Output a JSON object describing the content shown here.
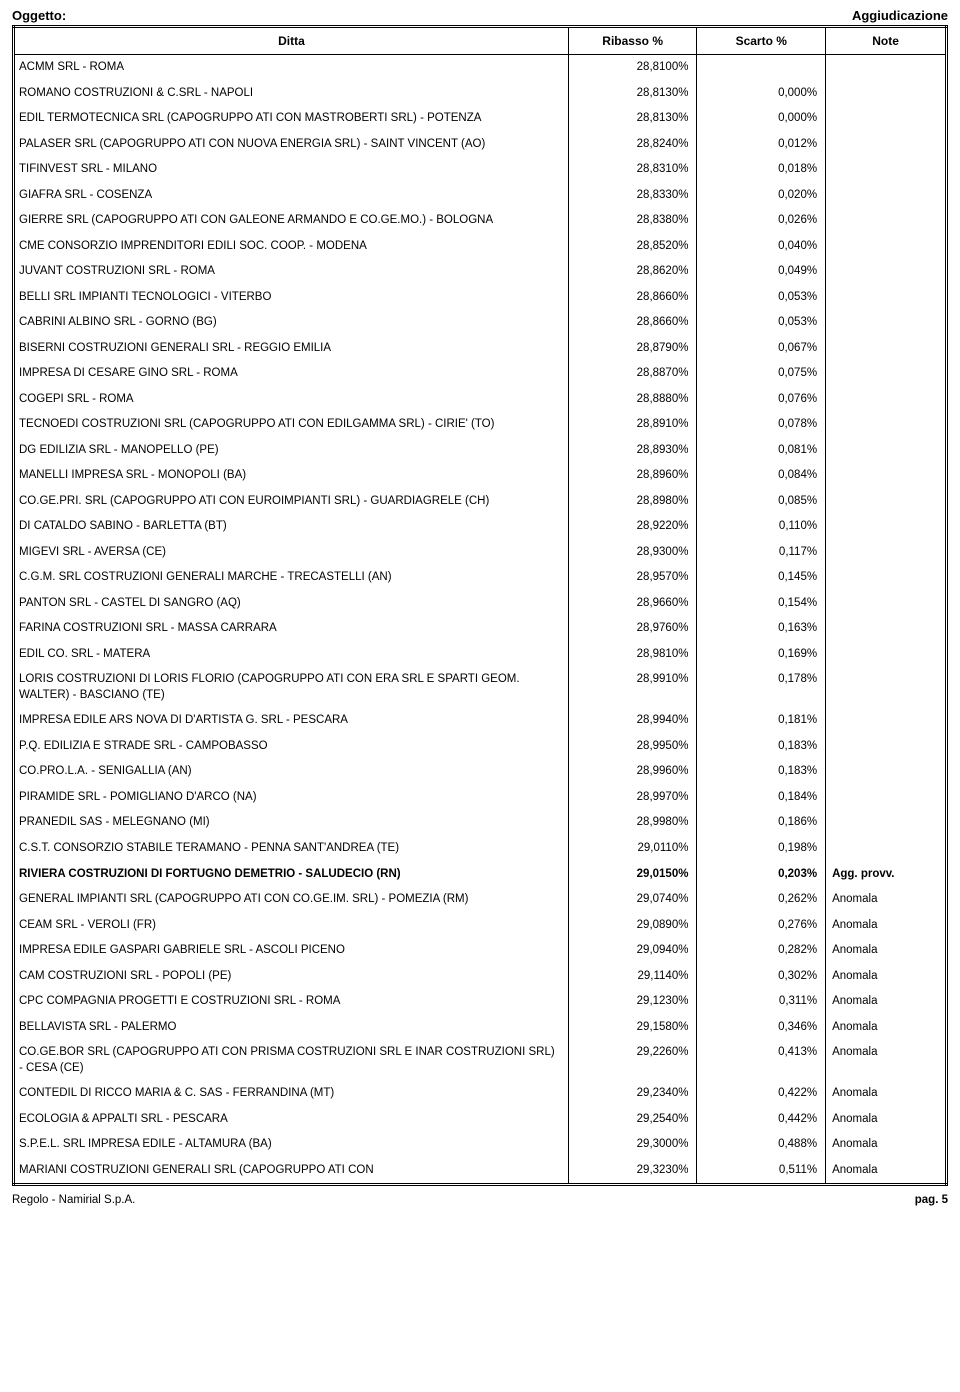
{
  "header": {
    "left": "Oggetto:",
    "right": "Aggiudicazione"
  },
  "columns": {
    "ditta": "Ditta",
    "ribasso": "Ribasso %",
    "scarto": "Scarto %",
    "note": "Note"
  },
  "rows": [
    {
      "ditta": "ACMM SRL - ROMA",
      "ribasso": "28,8100%",
      "scarto": "",
      "note": ""
    },
    {
      "ditta": "ROMANO COSTRUZIONI & C.SRL - NAPOLI",
      "ribasso": "28,8130%",
      "scarto": "0,000%",
      "note": ""
    },
    {
      "ditta": "EDIL TERMOTECNICA SRL (CAPOGRUPPO ATI CON MASTROBERTI SRL) - POTENZA",
      "ribasso": "28,8130%",
      "scarto": "0,000%",
      "note": ""
    },
    {
      "ditta": "PALASER SRL (CAPOGRUPPO ATI CON NUOVA ENERGIA SRL) - SAINT VINCENT (AO)",
      "ribasso": "28,8240%",
      "scarto": "0,012%",
      "note": ""
    },
    {
      "ditta": "TIFINVEST SRL - MILANO",
      "ribasso": "28,8310%",
      "scarto": "0,018%",
      "note": ""
    },
    {
      "ditta": "GIAFRA SRL - COSENZA",
      "ribasso": "28,8330%",
      "scarto": "0,020%",
      "note": ""
    },
    {
      "ditta": "GIERRE SRL (CAPOGRUPPO ATI CON GALEONE ARMANDO E CO.GE.MO.) - BOLOGNA",
      "ribasso": "28,8380%",
      "scarto": "0,026%",
      "note": ""
    },
    {
      "ditta": "CME CONSORZIO IMPRENDITORI EDILI SOC. COOP. -  MODENA",
      "ribasso": "28,8520%",
      "scarto": "0,040%",
      "note": ""
    },
    {
      "ditta": "JUVANT COSTRUZIONI SRL - ROMA",
      "ribasso": "28,8620%",
      "scarto": "0,049%",
      "note": ""
    },
    {
      "ditta": "BELLI SRL IMPIANTI TECNOLOGICI - VITERBO",
      "ribasso": "28,8660%",
      "scarto": "0,053%",
      "note": ""
    },
    {
      "ditta": "CABRINI ALBINO SRL - GORNO (BG)",
      "ribasso": "28,8660%",
      "scarto": "0,053%",
      "note": ""
    },
    {
      "ditta": "BISERNI COSTRUZIONI GENERALI SRL - REGGIO EMILIA",
      "ribasso": "28,8790%",
      "scarto": "0,067%",
      "note": ""
    },
    {
      "ditta": "IMPRESA DI CESARE GINO SRL - ROMA",
      "ribasso": "28,8870%",
      "scarto": "0,075%",
      "note": ""
    },
    {
      "ditta": "COGEPI SRL - ROMA",
      "ribasso": "28,8880%",
      "scarto": "0,076%",
      "note": ""
    },
    {
      "ditta": "TECNOEDI COSTRUZIONI SRL (CAPOGRUPPO ATI CON EDILGAMMA SRL) - CIRIE' (TO)",
      "ribasso": "28,8910%",
      "scarto": "0,078%",
      "note": ""
    },
    {
      "ditta": "DG EDILIZIA SRL - MANOPELLO (PE)",
      "ribasso": "28,8930%",
      "scarto": "0,081%",
      "note": ""
    },
    {
      "ditta": "MANELLI IMPRESA SRL - MONOPOLI (BA)",
      "ribasso": "28,8960%",
      "scarto": "0,084%",
      "note": ""
    },
    {
      "ditta": "CO.GE.PRI. SRL (CAPOGRUPPO ATI CON EUROIMPIANTI SRL) - GUARDIAGRELE (CH)",
      "ribasso": "28,8980%",
      "scarto": "0,085%",
      "note": ""
    },
    {
      "ditta": "DI CATALDO SABINO - BARLETTA (BT)",
      "ribasso": "28,9220%",
      "scarto": "0,110%",
      "note": ""
    },
    {
      "ditta": "MIGEVI SRL - AVERSA (CE)",
      "ribasso": "28,9300%",
      "scarto": "0,117%",
      "note": ""
    },
    {
      "ditta": "C.G.M. SRL COSTRUZIONI GENERALI MARCHE - TRECASTELLI (AN)",
      "ribasso": "28,9570%",
      "scarto": "0,145%",
      "note": ""
    },
    {
      "ditta": "PANTON SRL - CASTEL DI SANGRO (AQ)",
      "ribasso": "28,9660%",
      "scarto": "0,154%",
      "note": ""
    },
    {
      "ditta": "FARINA COSTRUZIONI SRL - MASSA CARRARA",
      "ribasso": "28,9760%",
      "scarto": "0,163%",
      "note": ""
    },
    {
      "ditta": "EDIL CO. SRL - MATERA",
      "ribasso": "28,9810%",
      "scarto": "0,169%",
      "note": ""
    },
    {
      "ditta": "LORIS COSTRUZIONI DI LORIS FLORIO (CAPOGRUPPO ATI CON ERA SRL E SPARTI GEOM. WALTER) - BASCIANO (TE)",
      "ribasso": "28,9910%",
      "scarto": "0,178%",
      "note": ""
    },
    {
      "ditta": "IMPRESA EDILE ARS NOVA DI D'ARTISTA G. SRL - PESCARA",
      "ribasso": "28,9940%",
      "scarto": "0,181%",
      "note": ""
    },
    {
      "ditta": "P.Q. EDILIZIA E STRADE SRL - CAMPOBASSO",
      "ribasso": "28,9950%",
      "scarto": "0,183%",
      "note": ""
    },
    {
      "ditta": "CO.PRO.L.A. - SENIGALLIA (AN)",
      "ribasso": "28,9960%",
      "scarto": "0,183%",
      "note": ""
    },
    {
      "ditta": "PIRAMIDE SRL - POMIGLIANO D'ARCO (NA)",
      "ribasso": "28,9970%",
      "scarto": "0,184%",
      "note": ""
    },
    {
      "ditta": "PRANEDIL SAS - MELEGNANO (MI)",
      "ribasso": "28,9980%",
      "scarto": "0,186%",
      "note": ""
    },
    {
      "ditta": "C.S.T. CONSORZIO STABILE TERAMANO - PENNA SANT'ANDREA (TE)",
      "ribasso": "29,0110%",
      "scarto": "0,198%",
      "note": ""
    },
    {
      "ditta": "RIVIERA COSTRUZIONI DI FORTUGNO DEMETRIO - SALUDECIO (RN)",
      "ribasso": "29,0150%",
      "scarto": "0,203%",
      "note": "Agg. provv.",
      "bold": true
    },
    {
      "ditta": "GENERAL IMPIANTI SRL (CAPOGRUPPO ATI CON CO.GE.IM. SRL) - POMEZIA (RM)",
      "ribasso": "29,0740%",
      "scarto": "0,262%",
      "note": "Anomala"
    },
    {
      "ditta": "CEAM SRL - VEROLI (FR)",
      "ribasso": "29,0890%",
      "scarto": "0,276%",
      "note": "Anomala"
    },
    {
      "ditta": "IMPRESA EDILE GASPARI GABRIELE SRL - ASCOLI PICENO",
      "ribasso": "29,0940%",
      "scarto": "0,282%",
      "note": "Anomala"
    },
    {
      "ditta": "CAM COSTRUZIONI SRL - POPOLI (PE)",
      "ribasso": "29,1140%",
      "scarto": "0,302%",
      "note": "Anomala"
    },
    {
      "ditta": "CPC COMPAGNIA PROGETTI E COSTRUZIONI SRL - ROMA",
      "ribasso": "29,1230%",
      "scarto": "0,311%",
      "note": "Anomala"
    },
    {
      "ditta": "BELLAVISTA SRL - PALERMO",
      "ribasso": "29,1580%",
      "scarto": "0,346%",
      "note": "Anomala"
    },
    {
      "ditta": "CO.GE.BOR SRL (CAPOGRUPPO ATI CON PRISMA COSTRUZIONI SRL E INAR COSTRUZIONI SRL) - CESA (CE)",
      "ribasso": "29,2260%",
      "scarto": "0,413%",
      "note": "Anomala"
    },
    {
      "ditta": "CONTEDIL DI RICCO MARIA & C. SAS - FERRANDINA (MT)",
      "ribasso": "29,2340%",
      "scarto": "0,422%",
      "note": "Anomala"
    },
    {
      "ditta": "ECOLOGIA & APPALTI SRL - PESCARA",
      "ribasso": "29,2540%",
      "scarto": "0,442%",
      "note": "Anomala"
    },
    {
      "ditta": "S.P.E.L. SRL IMPRESA EDILE - ALTAMURA (BA)",
      "ribasso": "29,3000%",
      "scarto": "0,488%",
      "note": "Anomala"
    },
    {
      "ditta": "MARIANI COSTRUZIONI GENERALI SRL (CAPOGRUPPO ATI CON",
      "ribasso": "29,3230%",
      "scarto": "0,511%",
      "note": "Anomala"
    }
  ],
  "footer": {
    "left": "Regolo - Namirial S.p.A.",
    "right": "pag. 5"
  }
}
